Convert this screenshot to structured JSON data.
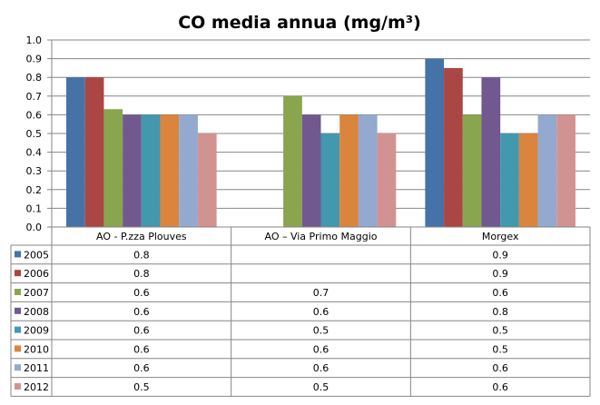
{
  "chart_data": {
    "type": "bar",
    "title": "CO media annua (mg/m³)",
    "xlabel": "",
    "ylabel": "",
    "ylim": [
      0,
      1.0
    ],
    "yticks": [
      "0.0",
      "0.1",
      "0.2",
      "0.3",
      "0.4",
      "0.5",
      "0.6",
      "0.7",
      "0.8",
      "0.9",
      "1.0"
    ],
    "grid": true,
    "legend": "data-table",
    "categories": [
      "AO - P.zza Plouves",
      "AO – Via Primo Maggio",
      "Morgex"
    ],
    "series": [
      {
        "name": "2005",
        "color": "#4572A7",
        "values": [
          0.8,
          null,
          0.9
        ],
        "labels": [
          "0.8",
          "",
          "0.9"
        ]
      },
      {
        "name": "2006",
        "color": "#AA4643",
        "values": [
          0.8,
          null,
          0.85
        ],
        "labels": [
          "0.8",
          "",
          "0.9"
        ]
      },
      {
        "name": "2007",
        "color": "#89A54E",
        "values": [
          0.63,
          0.7,
          0.6
        ],
        "labels": [
          "0.6",
          "0.7",
          "0.6"
        ]
      },
      {
        "name": "2008",
        "color": "#71588F",
        "values": [
          0.6,
          0.6,
          0.8
        ],
        "labels": [
          "0.6",
          "0.6",
          "0.8"
        ]
      },
      {
        "name": "2009",
        "color": "#4198AF",
        "values": [
          0.6,
          0.5,
          0.5
        ],
        "labels": [
          "0.6",
          "0.5",
          "0.5"
        ]
      },
      {
        "name": "2010",
        "color": "#DB843D",
        "values": [
          0.6,
          0.6,
          0.5
        ],
        "labels": [
          "0.6",
          "0.6",
          "0.5"
        ]
      },
      {
        "name": "2011",
        "color": "#93A9CF",
        "values": [
          0.6,
          0.6,
          0.6
        ],
        "labels": [
          "0.6",
          "0.6",
          "0.6"
        ]
      },
      {
        "name": "2012",
        "color": "#D19392",
        "values": [
          0.5,
          0.5,
          0.6
        ],
        "labels": [
          "0.5",
          "0.5",
          "0.6"
        ]
      }
    ]
  }
}
